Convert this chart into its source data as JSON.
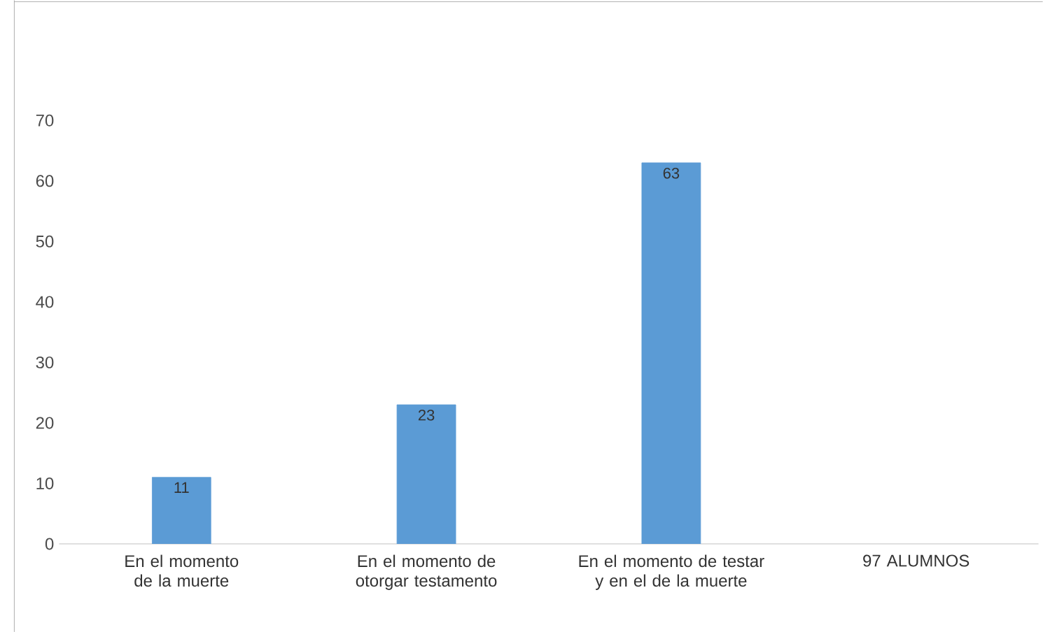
{
  "chart_data": {
    "type": "bar",
    "categories": [
      "En el momento de la muerte",
      "En el momento de otorgar testamento",
      "En el momento de testar y en el de la muerte",
      "97 ALUMNOS"
    ],
    "values": [
      11,
      23,
      63,
      null
    ],
    "color": "#5b9bd5",
    "value_labels": [
      "11",
      "23",
      "63",
      null
    ],
    "ylim": [
      0,
      70
    ],
    "yticks": [
      0,
      10,
      20,
      30,
      40,
      50,
      60,
      70
    ],
    "grid": false
  }
}
